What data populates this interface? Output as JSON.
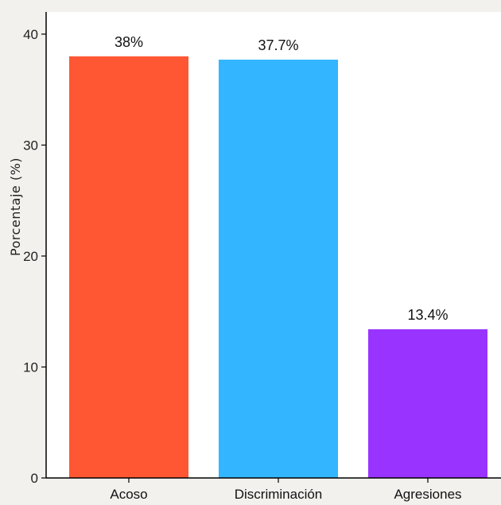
{
  "chart_data": {
    "type": "bar",
    "categories": [
      "Acoso",
      "Discriminación",
      "Agresiones"
    ],
    "values": [
      38.0,
      37.7,
      13.4
    ],
    "data_labels": [
      "38%",
      "37.7%",
      "13.4%"
    ],
    "colors": [
      "#ff5733",
      "#33b5ff",
      "#9933ff"
    ],
    "title": "",
    "xlabel": "",
    "ylabel": "Porcentaje (%)",
    "ylim": [
      0,
      42
    ],
    "yticks": [
      0,
      10,
      20,
      30,
      40
    ],
    "grid": false
  }
}
